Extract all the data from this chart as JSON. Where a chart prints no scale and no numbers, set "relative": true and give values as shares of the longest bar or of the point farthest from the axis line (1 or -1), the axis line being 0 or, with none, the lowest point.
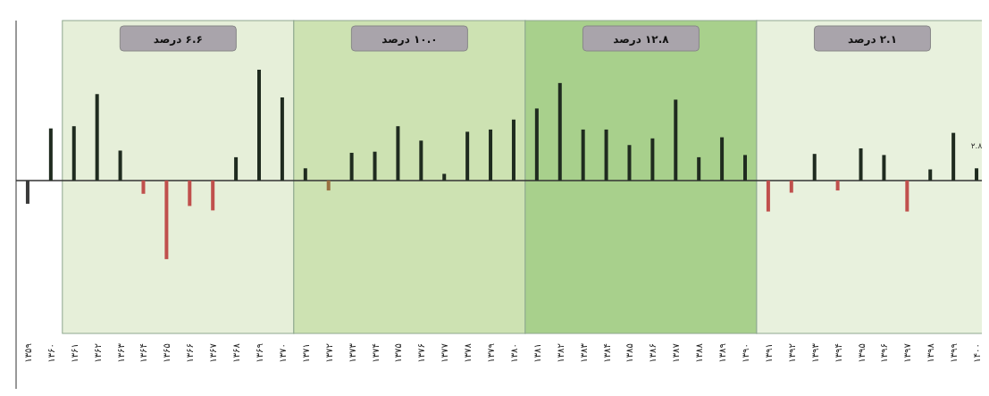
{
  "chart_data": {
    "type": "bar",
    "relative": true,
    "categories": [
      "۱۳۵۹",
      "۱۳۶۰",
      "۱۳۶۱",
      "۱۳۶۲",
      "۱۳۶۳",
      "۱۳۶۴",
      "۱۳۶۵",
      "۱۳۶۶",
      "۱۳۶۷",
      "۱۳۶۸",
      "۱۳۶۹",
      "۱۳۷۰",
      "۱۳۷۱",
      "۱۳۷۲",
      "۱۳۷۳",
      "۱۳۷۴",
      "۱۳۷۵",
      "۱۳۷۶",
      "۱۳۷۷",
      "۱۳۷۸",
      "۱۳۷۹",
      "۱۳۸۰",
      "۱۳۸۱",
      "۱۳۸۲",
      "۱۳۸۳",
      "۱۳۸۴",
      "۱۳۸۵",
      "۱۳۸۶",
      "۱۳۸۷",
      "۱۳۸۸",
      "۱۳۸۹",
      "۱۳۹۰",
      "۱۳۹۱",
      "۱۳۹۲",
      "۱۳۹۳",
      "۱۳۹۴",
      "۱۳۹۵",
      "۱۳۹۶",
      "۱۳۹۷",
      "۱۳۹۸",
      "۱۳۹۹",
      "۱۴۰۰"
    ],
    "values": [
      -0.21,
      0.47,
      0.49,
      0.78,
      0.27,
      -0.12,
      -0.71,
      -0.23,
      -0.27,
      0.21,
      1,
      0.75,
      0.11,
      -0.09,
      0.25,
      0.26,
      0.49,
      0.36,
      0.06,
      0.44,
      0.46,
      0.55,
      0.65,
      0.88,
      0.46,
      0.46,
      0.32,
      0.38,
      0.73,
      0.21,
      0.39,
      0.23,
      -0.28,
      -0.11,
      0.24,
      -0.09,
      0.29,
      0.23,
      -0.28,
      0.1,
      0.43,
      0.11
    ],
    "colors": [
      "#3a3a3a",
      "#1f2b1f",
      "#1f2b1f",
      "#1f2b1f",
      "#1f2b1f",
      "#c0504d",
      "#c0504d",
      "#c0504d",
      "#c0504d",
      "#1f2b1f",
      "#1f2b1f",
      "#1f2b1f",
      "#1f2b1f",
      "#9a7040",
      "#1f2b1f",
      "#1f2b1f",
      "#1f2b1f",
      "#1f2b1f",
      "#1f2b1f",
      "#1f2b1f",
      "#1f2b1f",
      "#1f2b1f",
      "#1f2b1f",
      "#1f2b1f",
      "#1f2b1f",
      "#1f2b1f",
      "#1f2b1f",
      "#1f2b1f",
      "#1f2b1f",
      "#1f2b1f",
      "#1f2b1f",
      "#1f2b1f",
      "#c0504d",
      "#c0504d",
      "#1f2b1f",
      "#c0504d",
      "#1f2b1f",
      "#1f2b1f",
      "#c0504d",
      "#1f2b1f",
      "#1f2b1f",
      "#1f2b1f"
    ],
    "bands": [
      {
        "axis": "x",
        "from": "۱۳۶۱",
        "to": "۱۳۷۰",
        "label": "۶.۶ درصد",
        "color": "#e6efd9"
      },
      {
        "axis": "x",
        "from": "۱۳۷۱",
        "to": "۱۳۸۰",
        "label": "۱۰.۰ درصد",
        "color": "#cde2b2"
      },
      {
        "axis": "x",
        "from": "۱۳۸۱",
        "to": "۱۳۹۰",
        "label": "۱۲.۸ درصد",
        "color": "#a8d08c"
      },
      {
        "axis": "x",
        "from": "۱۳۹۱",
        "to": "۱۴۰۰",
        "label": "۲.۱ درصد",
        "color": "#e8f1dd"
      }
    ],
    "annotations": [
      {
        "text": "۲.۸",
        "x": "۱۴۰۰",
        "y": 0.11
      }
    ]
  }
}
